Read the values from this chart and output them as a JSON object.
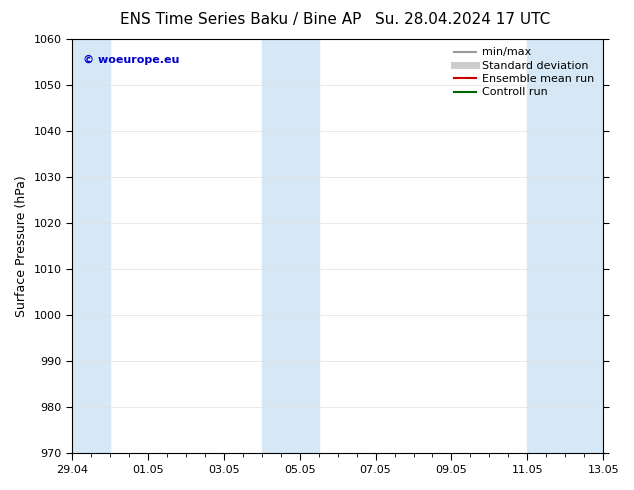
{
  "title": "ENS Time Series Baku / Bine AP",
  "title2": "Su. 28.04.2024 17 UTC",
  "ylabel": "Surface Pressure (hPa)",
  "ylim": [
    970,
    1060
  ],
  "yticks": [
    970,
    980,
    990,
    1000,
    1010,
    1020,
    1030,
    1040,
    1050,
    1060
  ],
  "xlim_start": 0.0,
  "xlim_end": 14.0,
  "xtick_positions": [
    0,
    2,
    4,
    6,
    8,
    10,
    12,
    14
  ],
  "xtick_labels": [
    "29.04",
    "01.05",
    "03.05",
    "05.05",
    "07.05",
    "09.05",
    "11.05",
    "13.05"
  ],
  "shaded_bands": [
    {
      "xmin": 0.0,
      "xmax": 1.0
    },
    {
      "xmin": 5.0,
      "xmax": 6.5
    },
    {
      "xmin": 12.0,
      "xmax": 14.0
    }
  ],
  "band_color": "#d6e8f5",
  "watermark": "© woeurope.eu",
  "watermark_color": "#0000cc",
  "legend_items": [
    {
      "label": "min/max",
      "color": "#999999",
      "lw": 1.5
    },
    {
      "label": "Standard deviation",
      "color": "#cccccc",
      "lw": 5
    },
    {
      "label": "Ensemble mean run",
      "color": "#cc0000",
      "lw": 1.5
    },
    {
      "label": "Controll run",
      "color": "#006600",
      "lw": 1.5
    }
  ],
  "bg_color": "#ffffff",
  "font_size_title": 11,
  "font_size_axis": 9,
  "font_size_tick": 8,
  "font_size_legend": 8,
  "font_size_watermark": 8
}
